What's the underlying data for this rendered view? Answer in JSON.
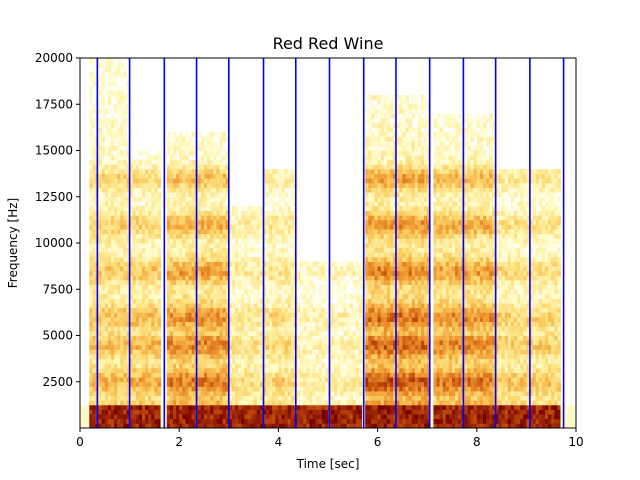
{
  "chart_data": {
    "type": "heatmap",
    "subtype": "spectrogram",
    "title": "Red Red Wine",
    "xlabel": "Time [sec]",
    "ylabel": "Frequency [Hz]",
    "xlim": [
      0,
      10
    ],
    "ylim": [
      0,
      20000
    ],
    "x_ticks": [
      0,
      2,
      4,
      6,
      8,
      10
    ],
    "x_tick_labels": [
      "0",
      "2",
      "4",
      "6",
      "8",
      "10"
    ],
    "y_ticks": [
      2500,
      5000,
      7500,
      10000,
      12500,
      15000,
      17500,
      20000
    ],
    "y_tick_labels": [
      "2500",
      "5000",
      "7500",
      "10000",
      "12500",
      "15000",
      "17500",
      "20000"
    ],
    "colormap": "afmhot_r",
    "colors": {
      "low": "#ffffff",
      "mid": "#f0a030",
      "high": "#7a0000",
      "markers": "#0000ff"
    },
    "grid": false,
    "vertical_markers_sec": [
      0.35,
      1.0,
      1.7,
      2.35,
      3.0,
      3.7,
      4.35,
      5.03,
      5.72,
      6.37,
      7.05,
      7.73,
      8.38,
      9.07,
      9.75
    ],
    "energy_regions": [
      {
        "t": [
          0.2,
          1.0
        ],
        "f": [
          0,
          20000
        ],
        "level": 0.5
      },
      {
        "t": [
          1.0,
          1.65
        ],
        "f": [
          0,
          15000
        ],
        "level": 0.55
      },
      {
        "t": [
          1.75,
          3.0
        ],
        "f": [
          0,
          16000
        ],
        "level": 0.7
      },
      {
        "t": [
          3.0,
          3.7
        ],
        "f": [
          0,
          12000
        ],
        "level": 0.35
      },
      {
        "t": [
          3.7,
          4.35
        ],
        "f": [
          0,
          14000
        ],
        "level": 0.4
      },
      {
        "t": [
          4.35,
          5.7
        ],
        "f": [
          0,
          9000
        ],
        "level": 0.25
      },
      {
        "t": [
          5.75,
          7.05
        ],
        "f": [
          0,
          18000
        ],
        "level": 0.8
      },
      {
        "t": [
          7.1,
          8.4
        ],
        "f": [
          0,
          17000
        ],
        "level": 0.7
      },
      {
        "t": [
          8.4,
          9.7
        ],
        "f": [
          0,
          14000
        ],
        "level": 0.45
      }
    ],
    "formant_bands_hz": [
      700,
      2500,
      4500,
      6000,
      8500,
      11000,
      13500
    ]
  }
}
